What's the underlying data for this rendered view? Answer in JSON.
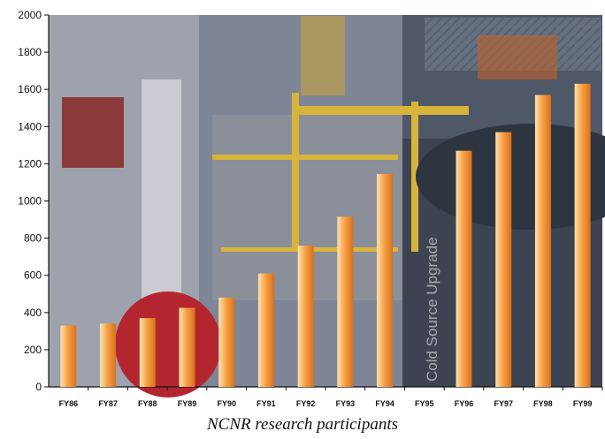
{
  "caption": "NCNR research participants",
  "colors": {
    "bar_light": "#fde3b0",
    "bar_mid": "#f7a347",
    "bar_dark": "#d9701a"
  },
  "chart_data": {
    "type": "bar",
    "categories": [
      "FY86",
      "FY87",
      "FY88",
      "FY89",
      "FY90",
      "FY91",
      "FY92",
      "FY93",
      "FY94",
      "FY95",
      "FY96",
      "FY97",
      "FY98",
      "FY99"
    ],
    "values": [
      330,
      340,
      370,
      425,
      480,
      610,
      760,
      915,
      1145,
      null,
      1270,
      1370,
      1570,
      1630
    ],
    "yticks": [
      "0",
      "200",
      "400",
      "600",
      "800",
      "1000",
      "1200",
      "1400",
      "1600",
      "1800",
      "2000"
    ],
    "ylim": [
      0,
      2000
    ],
    "annotation": "Cold Source Upgrade",
    "background": "photograph of neutron research facility"
  }
}
